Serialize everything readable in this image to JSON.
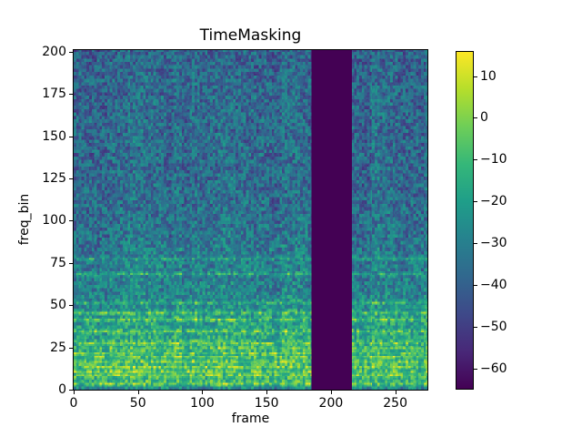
{
  "figure": {
    "background": "#ffffff",
    "spine_color": "#000000"
  },
  "chart_data": {
    "type": "heatmap",
    "title": "TimeMasking",
    "xlabel": "frame",
    "ylabel": "freq_bin",
    "xlim": [
      0,
      275
    ],
    "ylim": [
      0,
      201
    ],
    "n_frames": 275,
    "n_freq_bins": 201,
    "grid": false,
    "colormap": "viridis",
    "xticks": {
      "values": [
        0,
        50,
        100,
        150,
        200,
        250
      ],
      "labels": [
        "0",
        "50",
        "100",
        "150",
        "200",
        "250"
      ]
    },
    "yticks": {
      "values": [
        0,
        25,
        50,
        75,
        100,
        125,
        150,
        175,
        200
      ],
      "labels": [
        "0",
        "25",
        "50",
        "75",
        "100",
        "125",
        "150",
        "175",
        "200"
      ]
    },
    "colorbar": {
      "position": "right",
      "vmin": -65,
      "vmax": 16,
      "tick_values": [
        10,
        0,
        -10,
        -20,
        -30,
        -40,
        -50,
        -60
      ],
      "tick_labels": [
        "10",
        "0",
        "−10",
        "−20",
        "−30",
        "−40",
        "−50",
        "−60"
      ]
    },
    "masked_band": {
      "axis": "time",
      "start_frame": 185,
      "end_frame": 216,
      "value": -65,
      "color": "#440154"
    },
    "viridis_stops": [
      "#440154",
      "#482878",
      "#3e4989",
      "#31688e",
      "#26828e",
      "#1f9e89",
      "#35b779",
      "#6ece58",
      "#b5de2b",
      "#fde725"
    ],
    "freq_profile_anchors": [
      [
        0,
        -28
      ],
      [
        2,
        -18
      ],
      [
        4,
        -13
      ],
      [
        12,
        -13
      ],
      [
        22,
        -15
      ],
      [
        30,
        -17
      ],
      [
        36,
        -19
      ],
      [
        44,
        -21
      ],
      [
        50,
        -26
      ],
      [
        58,
        -29
      ],
      [
        70,
        -30
      ],
      [
        80,
        -32
      ],
      [
        95,
        -34
      ],
      [
        110,
        -36
      ],
      [
        140,
        -37
      ],
      [
        170,
        -37
      ],
      [
        200,
        -39
      ]
    ],
    "streak_rows": [
      3,
      8,
      10,
      13,
      16,
      19,
      21,
      24,
      27,
      34,
      41,
      45,
      51,
      68,
      77
    ],
    "noise_amplitude": 13
  }
}
